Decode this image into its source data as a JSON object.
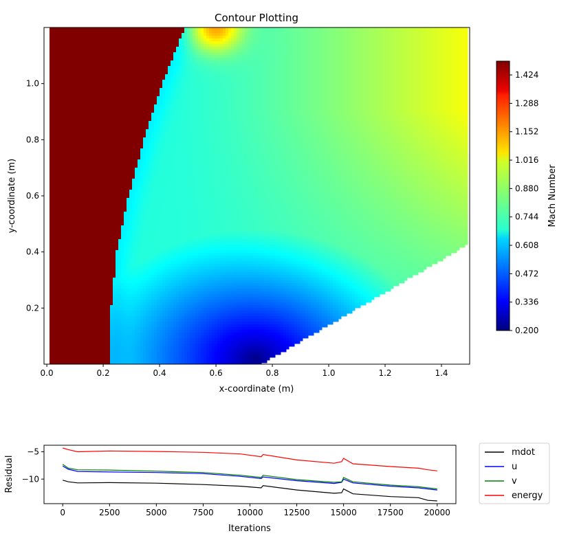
{
  "chart_data": [
    {
      "type": "heatmap",
      "title": "Contour Plotting",
      "xlabel": "x-coordinate (m)",
      "ylabel": "y-coordinate (m)",
      "xlim": [
        -0.01,
        1.5
      ],
      "ylim": [
        0.0,
        1.2
      ],
      "x_ticks": [
        0.0,
        0.2,
        0.4,
        0.6,
        0.8,
        1.0,
        1.2,
        1.4
      ],
      "x_tick_labels": [
        "0.0",
        "0.2",
        "0.4",
        "0.6",
        "0.8",
        "1.0",
        "1.2",
        "1.4"
      ],
      "y_ticks": [
        0.2,
        0.4,
        0.6,
        0.8,
        1.0
      ],
      "y_tick_labels": [
        "0.2",
        "0.4",
        "0.6",
        "0.8",
        "1.0"
      ],
      "colorbar": {
        "label": "Mach Number",
        "range": [
          0.2,
          1.49
        ],
        "ticks": [
          0.2,
          0.336,
          0.472,
          0.608,
          0.744,
          0.88,
          1.016,
          1.152,
          1.288,
          1.424
        ],
        "tick_labels": [
          "0.200",
          "0.336",
          "0.472",
          "0.608",
          "0.744",
          "0.880",
          "1.016",
          "1.152",
          "1.288",
          "1.424"
        ],
        "colormap": "jet"
      },
      "field": {
        "freestream_mach": 1.49,
        "shock_x_at_y": [
          [
            0.0,
            0.225
          ],
          [
            0.2,
            0.228
          ],
          [
            0.4,
            0.248
          ],
          [
            0.6,
            0.29
          ],
          [
            0.8,
            0.345
          ],
          [
            1.0,
            0.41
          ],
          [
            1.2,
            0.49
          ]
        ],
        "wedge_edge": [
          [
            0.76,
            0.0
          ],
          [
            1.5,
            0.43
          ]
        ],
        "min_mach_location": [
          0.74,
          0.02
        ],
        "min_mach": 0.2,
        "local_max_location": [
          0.6,
          1.2
        ],
        "local_max_mach": 1.12,
        "outlet_mach": 1.0,
        "postshock_mach": 0.73,
        "grid": false
      }
    },
    {
      "type": "line",
      "xlabel": "Iterations",
      "ylabel": "Residual",
      "xlim": [
        -1000,
        21000
      ],
      "ylim": [
        -14.5,
        -3.8
      ],
      "x_ticks": [
        0,
        2500,
        5000,
        7500,
        10000,
        12500,
        15000,
        17500,
        20000
      ],
      "x_tick_labels": [
        "0",
        "2500",
        "5000",
        "7500",
        "10000",
        "12500",
        "15000",
        "17500",
        "20000"
      ],
      "y_ticks": [
        -5,
        -10
      ],
      "y_tick_labels": [
        "−5",
        "−10"
      ],
      "legend": "outside-right",
      "x": [
        0,
        300,
        800,
        2500,
        5000,
        7500,
        9500,
        10600,
        10700,
        12500,
        14500,
        14900,
        15000,
        15500,
        17500,
        19000,
        19500,
        20000
      ],
      "series": [
        {
          "name": "mdot",
          "color": "#000000",
          "values": [
            -10.2,
            -10.5,
            -10.7,
            -10.65,
            -10.75,
            -11.0,
            -11.3,
            -11.6,
            -11.2,
            -12.0,
            -12.6,
            -12.5,
            -11.8,
            -12.7,
            -13.2,
            -13.4,
            -13.9,
            -14.0
          ]
        },
        {
          "name": "u",
          "color": "#0000ff",
          "values": [
            -7.6,
            -8.2,
            -8.6,
            -8.7,
            -8.8,
            -9.0,
            -9.5,
            -9.9,
            -9.6,
            -10.3,
            -10.8,
            -10.6,
            -10.0,
            -10.7,
            -11.3,
            -11.6,
            -11.8,
            -12.0
          ]
        },
        {
          "name": "v",
          "color": "#008000",
          "values": [
            -7.3,
            -8.0,
            -8.3,
            -8.35,
            -8.55,
            -8.8,
            -9.3,
            -9.7,
            -9.3,
            -10.1,
            -10.6,
            -10.5,
            -9.7,
            -10.5,
            -11.1,
            -11.4,
            -11.6,
            -11.8
          ]
        },
        {
          "name": "energy",
          "color": "#ff0000",
          "values": [
            -4.3,
            -4.6,
            -5.0,
            -4.85,
            -4.95,
            -5.1,
            -5.4,
            -5.9,
            -5.5,
            -6.5,
            -7.1,
            -6.8,
            -6.2,
            -7.2,
            -7.7,
            -8.0,
            -8.3,
            -8.5
          ]
        }
      ]
    }
  ]
}
